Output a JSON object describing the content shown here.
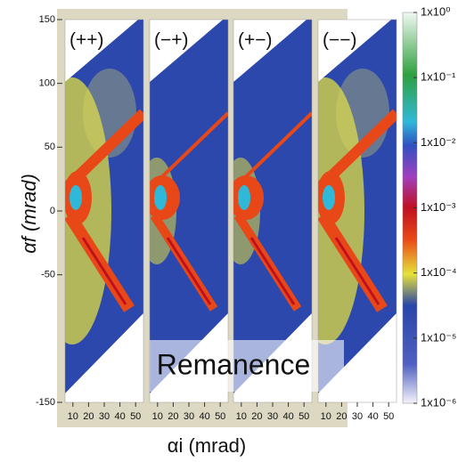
{
  "chart_data": {
    "type": "heatmap",
    "panels": [
      {
        "label": "(++)"
      },
      {
        "label": "(−+)"
      },
      {
        "label": "(+−)"
      },
      {
        "label": "(−−)"
      }
    ],
    "xlabel": "αi (mrad)",
    "ylabel": "αf (mrad)",
    "xlim": [
      5,
      55
    ],
    "xticks": [
      10,
      20,
      30,
      40,
      50
    ],
    "ylim": [
      -150,
      150
    ],
    "yticks": [
      150,
      100,
      50,
      0,
      -50,
      -150
    ],
    "colorbar": {
      "log": true,
      "lim": [
        1e-06,
        1
      ],
      "ticks": [
        {
          "value": 1,
          "label": "1x10⁰"
        },
        {
          "value": 0.1,
          "label": "1x10⁻¹"
        },
        {
          "value": 0.01,
          "label": "1x10⁻²"
        },
        {
          "value": 0.001,
          "label": "1x10⁻³"
        },
        {
          "value": 0.0001,
          "label": "1x10⁻⁴"
        },
        {
          "value": 1e-05,
          "label": "1x10⁻⁵"
        },
        {
          "value": 1e-06,
          "label": "1x10⁻⁶"
        }
      ]
    },
    "annotation": "Remanence"
  }
}
